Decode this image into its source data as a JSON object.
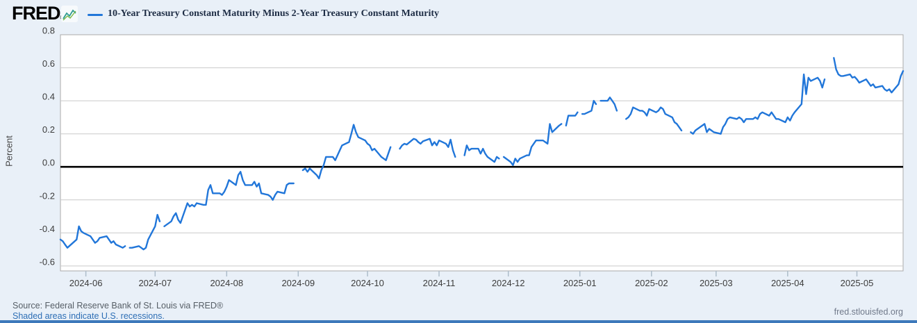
{
  "header": {
    "logo_text": "FRED",
    "logo_reg": "®",
    "series_title": "10-Year Treasury Constant Maturity Minus 2-Year Treasury Constant Maturity"
  },
  "footer": {
    "source_text": "Source: Federal Reserve Bank of St. Louis via FRED®",
    "recessions_link": "Shaded areas indicate U.S. recessions.",
    "site_link": "fred.stlouisfed.org"
  },
  "colors": {
    "line": "#2176d9",
    "grid": "#c9c9c9",
    "plot_border": "#aaaaaa",
    "zero_line": "#000000",
    "page_bg": "#e9f0f8",
    "plot_bg": "#ffffff",
    "bottom_bar": "#3d79bb"
  },
  "chart_data": {
    "type": "line",
    "title": "10-Year Treasury Constant Maturity Minus 2-Year Treasury Constant Maturity",
    "ylabel": "Percent",
    "xlabel": "",
    "legend_position": "top",
    "grid": "horizontal",
    "ylim": [
      -0.63,
      0.8
    ],
    "y_ticks": [
      0.8,
      0.6,
      0.4,
      0.2,
      0.0,
      -0.2,
      -0.4,
      -0.6
    ],
    "x_ticks": [
      "2024-06",
      "2024-07",
      "2024-08",
      "2024-09",
      "2024-10",
      "2024-11",
      "2024-12",
      "2025-01",
      "2025-02",
      "2025-03",
      "2025-04",
      "2025-05"
    ],
    "x_range": [
      "2024-05-21",
      "2025-05-21"
    ],
    "points": [
      [
        "2024-05-21",
        -0.44
      ],
      [
        "2024-05-22",
        -0.45
      ],
      [
        "2024-05-23",
        -0.47
      ],
      [
        "2024-05-24",
        -0.49
      ],
      [
        "2024-05-28",
        -0.44
      ],
      [
        "2024-05-29",
        -0.36
      ],
      [
        "2024-05-30",
        -0.39
      ],
      [
        "2024-05-31",
        -0.4
      ],
      [
        "2024-06-03",
        -0.42
      ],
      [
        "2024-06-04",
        -0.44
      ],
      [
        "2024-06-05",
        -0.46
      ],
      [
        "2024-06-06",
        -0.45
      ],
      [
        "2024-06-07",
        -0.43
      ],
      [
        "2024-06-10",
        -0.42
      ],
      [
        "2024-06-11",
        -0.44
      ],
      [
        "2024-06-12",
        -0.46
      ],
      [
        "2024-06-13",
        -0.45
      ],
      [
        "2024-06-14",
        -0.47
      ],
      [
        "2024-06-17",
        -0.49
      ],
      [
        "2024-06-18",
        -0.48
      ],
      [
        "2024-06-19",
        null
      ],
      [
        "2024-06-20",
        -0.49
      ],
      [
        "2024-06-21",
        -0.49
      ],
      [
        "2024-06-24",
        -0.48
      ],
      [
        "2024-06-25",
        -0.49
      ],
      [
        "2024-06-26",
        -0.5
      ],
      [
        "2024-06-27",
        -0.49
      ],
      [
        "2024-06-28",
        -0.44
      ],
      [
        "2024-07-01",
        -0.36
      ],
      [
        "2024-07-02",
        -0.29
      ],
      [
        "2024-07-03",
        -0.33
      ],
      [
        "2024-07-04",
        null
      ],
      [
        "2024-07-05",
        -0.36
      ],
      [
        "2024-07-08",
        -0.33
      ],
      [
        "2024-07-09",
        -0.3
      ],
      [
        "2024-07-10",
        -0.28
      ],
      [
        "2024-07-11",
        -0.32
      ],
      [
        "2024-07-12",
        -0.34
      ],
      [
        "2024-07-15",
        -0.22
      ],
      [
        "2024-07-16",
        -0.24
      ],
      [
        "2024-07-17",
        -0.23
      ],
      [
        "2024-07-18",
        -0.24
      ],
      [
        "2024-07-19",
        -0.22
      ],
      [
        "2024-07-22",
        -0.23
      ],
      [
        "2024-07-23",
        -0.23
      ],
      [
        "2024-07-24",
        -0.14
      ],
      [
        "2024-07-25",
        -0.11
      ],
      [
        "2024-07-26",
        -0.16
      ],
      [
        "2024-07-29",
        -0.16
      ],
      [
        "2024-07-30",
        -0.17
      ],
      [
        "2024-07-31",
        -0.15
      ],
      [
        "2024-08-01",
        -0.12
      ],
      [
        "2024-08-02",
        -0.08
      ],
      [
        "2024-08-05",
        -0.11
      ],
      [
        "2024-08-06",
        -0.05
      ],
      [
        "2024-08-07",
        -0.03
      ],
      [
        "2024-08-08",
        -0.08
      ],
      [
        "2024-08-09",
        -0.11
      ],
      [
        "2024-08-12",
        -0.11
      ],
      [
        "2024-08-13",
        -0.09
      ],
      [
        "2024-08-14",
        -0.12
      ],
      [
        "2024-08-15",
        -0.1
      ],
      [
        "2024-08-16",
        -0.16
      ],
      [
        "2024-08-19",
        -0.17
      ],
      [
        "2024-08-20",
        -0.18
      ],
      [
        "2024-08-21",
        -0.2
      ],
      [
        "2024-08-22",
        -0.17
      ],
      [
        "2024-08-23",
        -0.15
      ],
      [
        "2024-08-26",
        -0.16
      ],
      [
        "2024-08-27",
        -0.11
      ],
      [
        "2024-08-28",
        -0.1
      ],
      [
        "2024-08-29",
        -0.1
      ],
      [
        "2024-08-30",
        -0.1
      ],
      [
        "2024-09-02",
        null
      ],
      [
        "2024-09-03",
        -0.02
      ],
      [
        "2024-09-04",
        -0.01
      ],
      [
        "2024-09-05",
        -0.03
      ],
      [
        "2024-09-06",
        -0.01
      ],
      [
        "2024-09-09",
        -0.05
      ],
      [
        "2024-09-10",
        -0.07
      ],
      [
        "2024-09-11",
        -0.02
      ],
      [
        "2024-09-12",
        0.01
      ],
      [
        "2024-09-13",
        0.06
      ],
      [
        "2024-09-16",
        0.06
      ],
      [
        "2024-09-17",
        0.04
      ],
      [
        "2024-09-18",
        0.07
      ],
      [
        "2024-09-19",
        0.1
      ],
      [
        "2024-09-20",
        0.13
      ],
      [
        "2024-09-23",
        0.15
      ],
      [
        "2024-09-24",
        0.2
      ],
      [
        "2024-09-25",
        0.255
      ],
      [
        "2024-09-26",
        0.21
      ],
      [
        "2024-09-27",
        0.18
      ],
      [
        "2024-09-30",
        0.16
      ],
      [
        "2024-10-01",
        0.14
      ],
      [
        "2024-10-02",
        0.13
      ],
      [
        "2024-10-03",
        0.1
      ],
      [
        "2024-10-04",
        0.11
      ],
      [
        "2024-10-07",
        0.06
      ],
      [
        "2024-10-08",
        0.05
      ],
      [
        "2024-10-09",
        0.04
      ],
      [
        "2024-10-10",
        0.08
      ],
      [
        "2024-10-11",
        0.12
      ],
      [
        "2024-10-14",
        null
      ],
      [
        "2024-10-15",
        0.11
      ],
      [
        "2024-10-16",
        0.13
      ],
      [
        "2024-10-17",
        0.14
      ],
      [
        "2024-10-18",
        0.135
      ],
      [
        "2024-10-21",
        0.17
      ],
      [
        "2024-10-22",
        0.165
      ],
      [
        "2024-10-23",
        0.15
      ],
      [
        "2024-10-24",
        0.14
      ],
      [
        "2024-10-25",
        0.155
      ],
      [
        "2024-10-28",
        0.17
      ],
      [
        "2024-10-29",
        0.13
      ],
      [
        "2024-10-30",
        0.15
      ],
      [
        "2024-10-31",
        0.13
      ],
      [
        "2024-11-01",
        0.16
      ],
      [
        "2024-11-04",
        0.14
      ],
      [
        "2024-11-05",
        0.12
      ],
      [
        "2024-11-06",
        0.165
      ],
      [
        "2024-11-07",
        0.1
      ],
      [
        "2024-11-08",
        0.06
      ],
      [
        "2024-11-11",
        null
      ],
      [
        "2024-11-12",
        0.07
      ],
      [
        "2024-11-13",
        0.13
      ],
      [
        "2024-11-14",
        0.1
      ],
      [
        "2024-11-15",
        0.11
      ],
      [
        "2024-11-18",
        0.11
      ],
      [
        "2024-11-19",
        0.08
      ],
      [
        "2024-11-20",
        0.11
      ],
      [
        "2024-11-21",
        0.08
      ],
      [
        "2024-11-22",
        0.06
      ],
      [
        "2024-11-25",
        0.03
      ],
      [
        "2024-11-26",
        0.06
      ],
      [
        "2024-11-27",
        0.05
      ],
      [
        "2024-11-28",
        null
      ],
      [
        "2024-11-29",
        0.06
      ],
      [
        "2024-12-02",
        0.03
      ],
      [
        "2024-12-03",
        0.01
      ],
      [
        "2024-12-04",
        0.05
      ],
      [
        "2024-12-05",
        0.03
      ],
      [
        "2024-12-06",
        0.05
      ],
      [
        "2024-12-09",
        0.07
      ],
      [
        "2024-12-10",
        0.07
      ],
      [
        "2024-12-11",
        0.12
      ],
      [
        "2024-12-12",
        0.14
      ],
      [
        "2024-12-13",
        0.16
      ],
      [
        "2024-12-16",
        0.16
      ],
      [
        "2024-12-17",
        0.15
      ],
      [
        "2024-12-18",
        0.14
      ],
      [
        "2024-12-19",
        0.26
      ],
      [
        "2024-12-20",
        0.21
      ],
      [
        "2024-12-23",
        0.25
      ],
      [
        "2024-12-24",
        0.26
      ],
      [
        "2024-12-25",
        null
      ],
      [
        "2024-12-26",
        0.25
      ],
      [
        "2024-12-27",
        0.31
      ],
      [
        "2024-12-30",
        0.31
      ],
      [
        "2024-12-31",
        0.33
      ],
      [
        "2025-01-01",
        null
      ],
      [
        "2025-01-02",
        0.32
      ],
      [
        "2025-01-03",
        0.32
      ],
      [
        "2025-01-06",
        0.34
      ],
      [
        "2025-01-07",
        0.4
      ],
      [
        "2025-01-08",
        0.38
      ],
      [
        "2025-01-09",
        null
      ],
      [
        "2025-01-10",
        0.4
      ],
      [
        "2025-01-13",
        0.4
      ],
      [
        "2025-01-14",
        0.42
      ],
      [
        "2025-01-15",
        0.4
      ],
      [
        "2025-01-16",
        0.38
      ],
      [
        "2025-01-17",
        0.34
      ],
      [
        "2025-01-20",
        null
      ],
      [
        "2025-01-21",
        0.29
      ],
      [
        "2025-01-22",
        0.3
      ],
      [
        "2025-01-23",
        0.32
      ],
      [
        "2025-01-24",
        0.36
      ],
      [
        "2025-01-27",
        0.34
      ],
      [
        "2025-01-28",
        0.34
      ],
      [
        "2025-01-29",
        0.33
      ],
      [
        "2025-01-30",
        0.31
      ],
      [
        "2025-01-31",
        0.35
      ],
      [
        "2025-02-03",
        0.33
      ],
      [
        "2025-02-04",
        0.34
      ],
      [
        "2025-02-05",
        0.36
      ],
      [
        "2025-02-06",
        0.35
      ],
      [
        "2025-02-07",
        0.32
      ],
      [
        "2025-02-10",
        0.3
      ],
      [
        "2025-02-11",
        0.27
      ],
      [
        "2025-02-12",
        0.26
      ],
      [
        "2025-02-13",
        0.24
      ],
      [
        "2025-02-14",
        0.22
      ],
      [
        "2025-02-17",
        null
      ],
      [
        "2025-02-18",
        0.21
      ],
      [
        "2025-02-19",
        0.2
      ],
      [
        "2025-02-20",
        0.22
      ],
      [
        "2025-02-21",
        0.23
      ],
      [
        "2025-02-24",
        0.26
      ],
      [
        "2025-02-25",
        0.21
      ],
      [
        "2025-02-26",
        0.23
      ],
      [
        "2025-02-27",
        0.22
      ],
      [
        "2025-02-28",
        0.21
      ],
      [
        "2025-03-03",
        0.2
      ],
      [
        "2025-03-04",
        0.24
      ],
      [
        "2025-03-05",
        0.26
      ],
      [
        "2025-03-06",
        0.29
      ],
      [
        "2025-03-07",
        0.3
      ],
      [
        "2025-03-10",
        0.29
      ],
      [
        "2025-03-11",
        0.3
      ],
      [
        "2025-03-12",
        0.29
      ],
      [
        "2025-03-13",
        0.27
      ],
      [
        "2025-03-14",
        0.29
      ],
      [
        "2025-03-17",
        0.29
      ],
      [
        "2025-03-18",
        0.3
      ],
      [
        "2025-03-19",
        0.29
      ],
      [
        "2025-03-20",
        0.32
      ],
      [
        "2025-03-21",
        0.33
      ],
      [
        "2025-03-24",
        0.31
      ],
      [
        "2025-03-25",
        0.33
      ],
      [
        "2025-03-26",
        0.31
      ],
      [
        "2025-03-27",
        0.29
      ],
      [
        "2025-03-28",
        0.29
      ],
      [
        "2025-03-31",
        0.27
      ],
      [
        "2025-04-01",
        0.3
      ],
      [
        "2025-04-02",
        0.28
      ],
      [
        "2025-04-03",
        0.31
      ],
      [
        "2025-04-04",
        0.33
      ],
      [
        "2025-04-07",
        0.38
      ],
      [
        "2025-04-08",
        0.56
      ],
      [
        "2025-04-09",
        0.44
      ],
      [
        "2025-04-10",
        0.54
      ],
      [
        "2025-04-11",
        0.52
      ],
      [
        "2025-04-14",
        0.54
      ],
      [
        "2025-04-15",
        0.52
      ],
      [
        "2025-04-16",
        0.48
      ],
      [
        "2025-04-17",
        0.53
      ],
      [
        "2025-04-18",
        null
      ],
      [
        "2025-04-21",
        0.66
      ],
      [
        "2025-04-22",
        0.59
      ],
      [
        "2025-04-23",
        0.56
      ],
      [
        "2025-04-24",
        0.55
      ],
      [
        "2025-04-25",
        0.55
      ],
      [
        "2025-04-28",
        0.56
      ],
      [
        "2025-04-29",
        0.54
      ],
      [
        "2025-04-30",
        0.545
      ],
      [
        "2025-05-01",
        0.53
      ],
      [
        "2025-05-02",
        0.51
      ],
      [
        "2025-05-05",
        0.53
      ],
      [
        "2025-05-06",
        0.51
      ],
      [
        "2025-05-07",
        0.49
      ],
      [
        "2025-05-08",
        0.5
      ],
      [
        "2025-05-09",
        0.48
      ],
      [
        "2025-05-12",
        0.49
      ],
      [
        "2025-05-13",
        0.47
      ],
      [
        "2025-05-14",
        0.46
      ],
      [
        "2025-05-15",
        0.47
      ],
      [
        "2025-05-16",
        0.45
      ],
      [
        "2025-05-19",
        0.5
      ],
      [
        "2025-05-20",
        0.55
      ],
      [
        "2025-05-21",
        0.58
      ]
    ]
  }
}
